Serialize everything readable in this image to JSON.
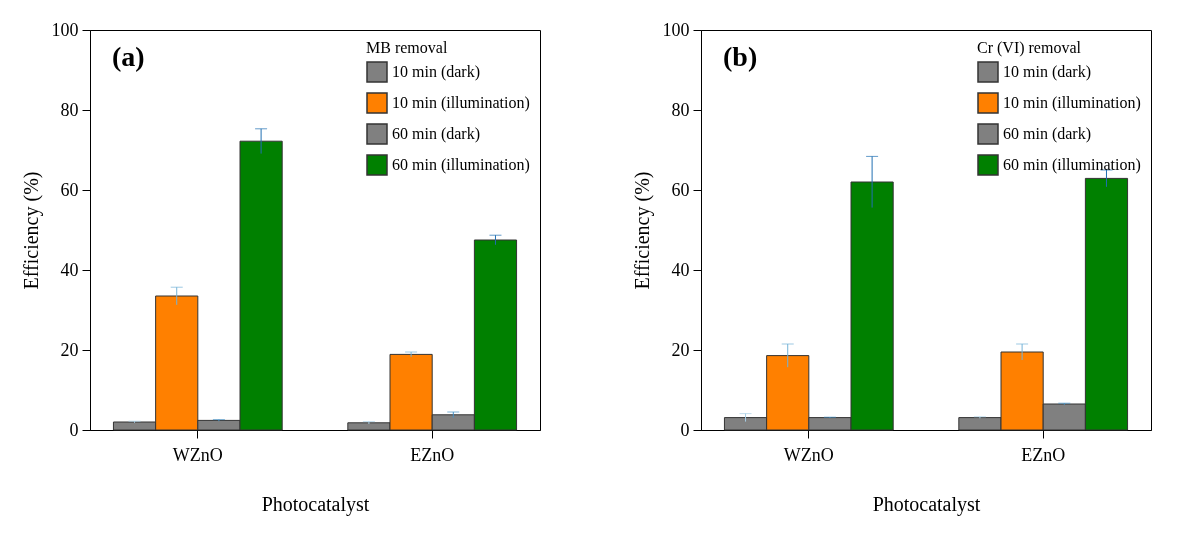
{
  "chart_data": [
    {
      "type": "bar",
      "xlabel": "Photocatalyst",
      "ylabel": "Efficiency (%)",
      "legend_title": "MB removal",
      "legend": "top right",
      "annotations": [
        "(a)"
      ],
      "categories": [
        "WZnO",
        "EZnO"
      ],
      "ylim": [
        0,
        100
      ],
      "yticks": [
        0,
        20,
        40,
        60,
        80,
        100
      ],
      "series": [
        {
          "name": "10 min (dark)",
          "color": "#808080",
          "values": [
            2.0,
            1.8
          ],
          "errors": [
            0.2,
            0.3
          ]
        },
        {
          "name": "10 min (illumination)",
          "color": "#ff8000",
          "values": [
            33.5,
            18.9
          ],
          "errors": [
            2.2,
            0.6
          ]
        },
        {
          "name": "60 min (dark)",
          "color": "#808080",
          "values": [
            2.4,
            3.8
          ],
          "errors": [
            0.2,
            0.7
          ]
        },
        {
          "name": "60 min (illumination)",
          "color": "#008000",
          "values": [
            72.2,
            47.5
          ],
          "errors": [
            3.1,
            1.2
          ]
        }
      ]
    },
    {
      "type": "bar",
      "xlabel": "Photocatalyst",
      "ylabel": "Efficiency (%)",
      "legend_title": "Cr (VI) removal",
      "legend": "top right",
      "annotations": [
        "(b)"
      ],
      "categories": [
        "WZnO",
        "EZnO"
      ],
      "ylim": [
        0,
        100
      ],
      "yticks": [
        0,
        20,
        40,
        60,
        80,
        100
      ],
      "series": [
        {
          "name": "10 min (dark)",
          "color": "#808080",
          "values": [
            3.1,
            3.1
          ],
          "errors": [
            1.0,
            0.2
          ]
        },
        {
          "name": "10 min (illumination)",
          "color": "#ff8000",
          "values": [
            18.6,
            19.5
          ],
          "errors": [
            2.9,
            2.0
          ]
        },
        {
          "name": "60 min (dark)",
          "color": "#808080",
          "values": [
            3.1,
            6.5
          ],
          "errors": [
            0.1,
            0.2
          ]
        },
        {
          "name": "60 min (illumination)",
          "color": "#008000",
          "values": [
            62.0,
            62.9
          ],
          "errors": [
            6.4,
            2.1
          ]
        }
      ]
    }
  ]
}
